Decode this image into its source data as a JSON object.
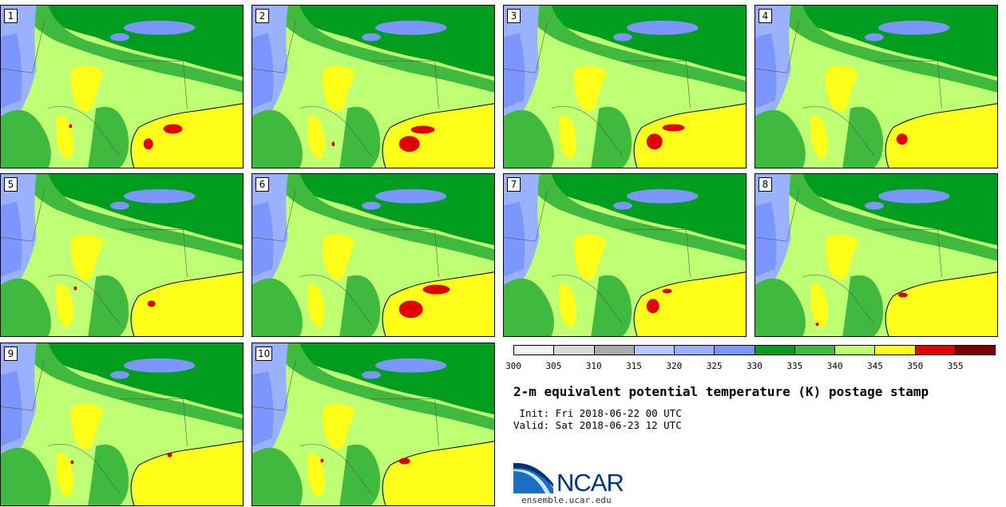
{
  "panels": [
    {
      "label": "1",
      "hot": [
        [
          205,
          150,
          24,
          12
        ],
        [
          180,
          168,
          12,
          14
        ],
        [
          86,
          150,
          4,
          5
        ]
      ]
    },
    {
      "label": "2",
      "hot": [
        [
          185,
          165,
          26,
          20
        ],
        [
          200,
          152,
          30,
          10
        ],
        [
          100,
          172,
          4,
          6
        ]
      ]
    },
    {
      "label": "3",
      "hot": [
        [
          180,
          162,
          20,
          20
        ],
        [
          200,
          150,
          28,
          9
        ]
      ]
    },
    {
      "label": "4",
      "hot": [
        [
          178,
          162,
          14,
          14
        ]
      ]
    },
    {
      "label": "5",
      "hot": [
        [
          185,
          160,
          10,
          8
        ],
        [
          92,
          142,
          4,
          5
        ]
      ]
    },
    {
      "label": "6",
      "hot": [
        [
          185,
          160,
          30,
          22
        ],
        [
          215,
          140,
          34,
          12
        ]
      ]
    },
    {
      "label": "7",
      "hot": [
        [
          180,
          158,
          16,
          18
        ],
        [
          200,
          145,
          12,
          6
        ]
      ]
    },
    {
      "label": "8",
      "hot": [
        [
          180,
          150,
          12,
          6
        ],
        [
          76,
          188,
          4,
          4
        ]
      ]
    },
    {
      "label": "9",
      "hot": [
        [
          210,
          138,
          6,
          6
        ],
        [
          88,
          148,
          4,
          5
        ]
      ]
    },
    {
      "label": "10",
      "hot": [
        [
          185,
          145,
          14,
          8
        ],
        [
          86,
          146,
          4,
          5
        ]
      ]
    }
  ],
  "colorbar": {
    "colors": [
      "#f2f2f2",
      "#d9d9d9",
      "#aaaaaa",
      "#b3c9ff",
      "#99b1ff",
      "#7b96ff",
      "#009d1f",
      "#3fba3f",
      "#bfff73",
      "#ffff1a",
      "#e00000",
      "#7d0000"
    ],
    "ticks": [
      "300",
      "305",
      "310",
      "315",
      "320",
      "325",
      "330",
      "335",
      "340",
      "345",
      "350",
      "355"
    ]
  },
  "title": "2-m equivalent potential temperature (K) postage stamp",
  "init_text": " Init: Fri 2018-06-22 00 UTC",
  "valid_text": "Valid: Sat 2018-06-23 12 UTC",
  "logo": {
    "text": "NCAR",
    "url": "ensemble.ucar.edu"
  },
  "colors": {
    "gulf": "#ffff1a",
    "dark_green": "#009d1f",
    "mid_green": "#3fba3f",
    "light_green": "#bfff73",
    "blue": "#7b96ff",
    "pale_blue": "#99b1ff",
    "red": "#e00000"
  }
}
